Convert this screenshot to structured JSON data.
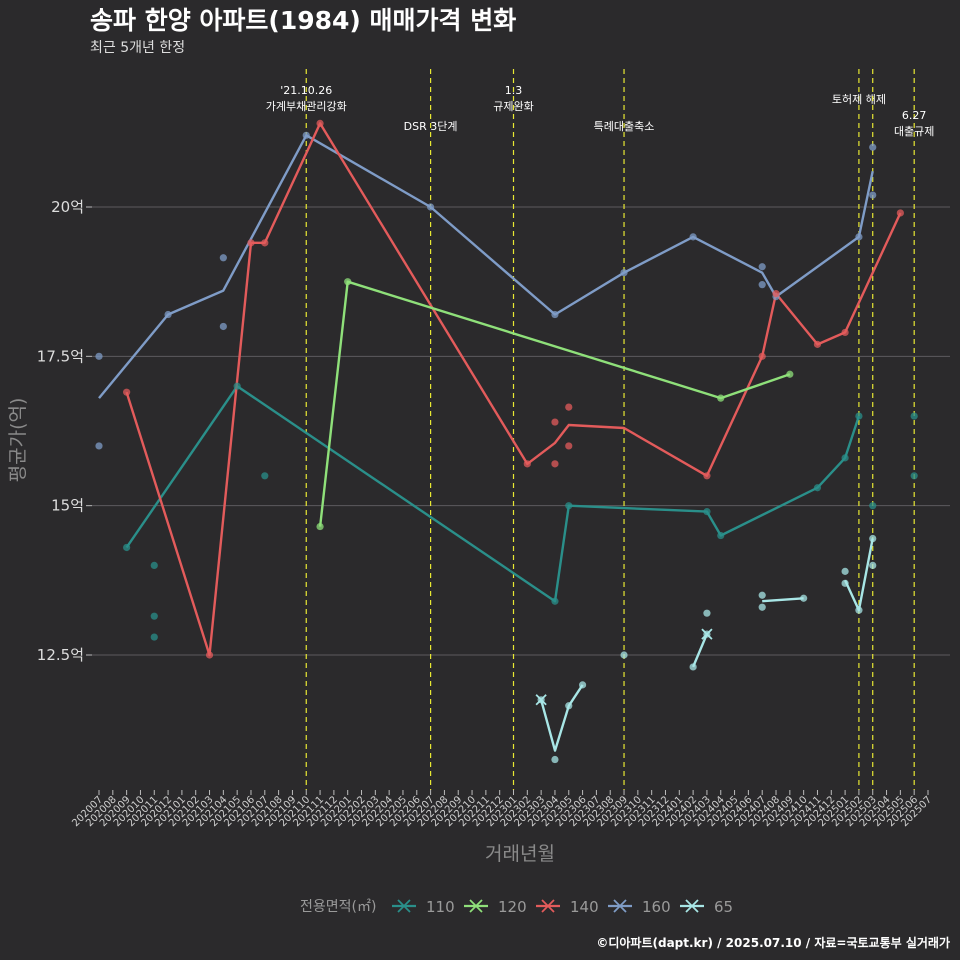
{
  "chart_data": {
    "type": "line",
    "title": "송파 한양 아파트(1984) 매매가격 변화",
    "subtitle": "최근 5개년 한정",
    "xlabel": "거래년월",
    "ylabel": "평균가(억)",
    "caption": "©디아파트(dapt.kr) / 2025.07.10 / 자료=국토교통부 실거래가",
    "legend_title": "전용면적(㎡)",
    "legend_position": "bottom",
    "ylim": [
      10.0,
      21.8
    ],
    "y_ticks": [
      {
        "value": 12.5,
        "label": "12.5억"
      },
      {
        "value": 15,
        "label": "15억"
      },
      {
        "value": 17.5,
        "label": "17.5억"
      },
      {
        "value": 20,
        "label": "20억"
      }
    ],
    "x_categories": [
      "202007",
      "202008",
      "202009",
      "202010",
      "202011",
      "202012",
      "202101",
      "202102",
      "202103",
      "202104",
      "202105",
      "202106",
      "202107",
      "202108",
      "202109",
      "202110",
      "202111",
      "202112",
      "202201",
      "202202",
      "202203",
      "202204",
      "202205",
      "202206",
      "202207",
      "202208",
      "202209",
      "202210",
      "202211",
      "202212",
      "202301",
      "202302",
      "202303",
      "202304",
      "202305",
      "202306",
      "202307",
      "202308",
      "202309",
      "202310",
      "202311",
      "202312",
      "202401",
      "202402",
      "202403",
      "202404",
      "202405",
      "202406",
      "202407",
      "202408",
      "202409",
      "202410",
      "202411",
      "202412",
      "202501",
      "202502",
      "202503",
      "202504",
      "202505",
      "202506",
      "202507"
    ],
    "events": [
      {
        "x": "202110",
        "label": "'21.10.26\n가계부채관리강화"
      },
      {
        "x": "202207",
        "label": "DSR 3단계"
      },
      {
        "x": "202301",
        "label": "1.3\n규제완화"
      },
      {
        "x": "202309",
        "label": "특례대출축소"
      },
      {
        "x": "202502",
        "label": "토허제 해제"
      },
      {
        "x": "202503",
        "label": ""
      },
      {
        "x": "202506",
        "label": "6.27\n대출규제"
      }
    ],
    "colors": {
      "110": "#2a8f8a",
      "120": "#8fe07a",
      "140": "#e35b5b",
      "160": "#7f9cc7",
      "65": "#a8e6e6"
    },
    "series": [
      {
        "name": "110",
        "line": [
          [
            "202009",
            14.3
          ],
          [
            "202105",
            17.0
          ],
          [
            "202304",
            13.4
          ],
          [
            "202305",
            15.0
          ],
          [
            "202403",
            14.9
          ],
          [
            "202404",
            14.5
          ],
          [
            "202411",
            15.3
          ],
          [
            "202501",
            15.8
          ],
          [
            "202502",
            16.5
          ]
        ],
        "points": [
          [
            "202009",
            14.3
          ],
          [
            "202011",
            14.0
          ],
          [
            "202011",
            13.15
          ],
          [
            "202011",
            12.8
          ],
          [
            "202105",
            17.0
          ],
          [
            "202107",
            15.5
          ],
          [
            "202304",
            13.4
          ],
          [
            "202305",
            15.0
          ],
          [
            "202403",
            14.9
          ],
          [
            "202404",
            14.5
          ],
          [
            "202411",
            15.3
          ],
          [
            "202501",
            15.8
          ],
          [
            "202502",
            16.5
          ],
          [
            "202503",
            15.0
          ],
          [
            "202506",
            16.5
          ],
          [
            "202506",
            15.5
          ]
        ]
      },
      {
        "name": "120",
        "line": [
          [
            "202111",
            14.65
          ],
          [
            "202201",
            18.75
          ],
          [
            "202404",
            16.8
          ],
          [
            "202409",
            17.2
          ]
        ],
        "points": [
          [
            "202111",
            14.65
          ],
          [
            "202201",
            18.75
          ],
          [
            "202404",
            16.8
          ],
          [
            "202409",
            17.2
          ]
        ]
      },
      {
        "name": "140",
        "line": [
          [
            "202009",
            16.9
          ],
          [
            "202103",
            12.5
          ],
          [
            "202106",
            19.4
          ],
          [
            "202107",
            19.4
          ],
          [
            "202111",
            21.4
          ],
          [
            "202302",
            15.7
          ],
          [
            "202304",
            16.05
          ],
          [
            "202305",
            16.35
          ],
          [
            "202309",
            16.3
          ],
          [
            "202403",
            15.5
          ],
          [
            "202407",
            17.5
          ],
          [
            "202408",
            18.55
          ],
          [
            "202411",
            17.7
          ],
          [
            "202501",
            17.9
          ],
          [
            "202505",
            19.9
          ]
        ],
        "points": [
          [
            "202009",
            16.9
          ],
          [
            "202103",
            12.5
          ],
          [
            "202106",
            19.4
          ],
          [
            "202107",
            19.4
          ],
          [
            "202111",
            21.4
          ],
          [
            "202302",
            15.7
          ],
          [
            "202304",
            16.4
          ],
          [
            "202304",
            15.7
          ],
          [
            "202305",
            16.65
          ],
          [
            "202305",
            16.0
          ],
          [
            "202403",
            15.5
          ],
          [
            "202407",
            17.5
          ],
          [
            "202408",
            18.55
          ],
          [
            "202411",
            17.7
          ],
          [
            "202501",
            17.9
          ],
          [
            "202505",
            19.9
          ]
        ]
      },
      {
        "name": "160",
        "line": [
          [
            "202007",
            16.8
          ],
          [
            "202012",
            18.2
          ],
          [
            "202104",
            18.6
          ],
          [
            "202110",
            21.2
          ],
          [
            "202207",
            20.0
          ],
          [
            "202304",
            18.2
          ],
          [
            "202309",
            18.9
          ],
          [
            "202402",
            19.5
          ],
          [
            "202407",
            18.9
          ],
          [
            "202408",
            18.5
          ],
          [
            "202502",
            19.5
          ],
          [
            "202503",
            20.6
          ]
        ],
        "points": [
          [
            "202007",
            17.5
          ],
          [
            "202007",
            16.0
          ],
          [
            "202012",
            18.2
          ],
          [
            "202104",
            19.15
          ],
          [
            "202104",
            18.0
          ],
          [
            "202110",
            21.2
          ],
          [
            "202207",
            20.0
          ],
          [
            "202304",
            18.2
          ],
          [
            "202309",
            18.9
          ],
          [
            "202402",
            19.5
          ],
          [
            "202407",
            19.0
          ],
          [
            "202407",
            18.7
          ],
          [
            "202408",
            18.5
          ],
          [
            "202502",
            19.5
          ],
          [
            "202503",
            21.0
          ],
          [
            "202503",
            20.2
          ]
        ]
      },
      {
        "name": "65",
        "segments": [
          [
            [
              "202303",
              11.75
            ],
            [
              "202304",
              10.9
            ],
            [
              "202305",
              11.65
            ],
            [
              "202306",
              12.0
            ]
          ],
          [
            [
              "202402",
              12.3
            ],
            [
              "202403",
              12.85
            ]
          ],
          [
            [
              "202407",
              13.4
            ],
            [
              "202410",
              13.45
            ]
          ],
          [
            [
              "202501",
              13.75
            ],
            [
              "202502",
              13.25
            ],
            [
              "202503",
              14.45
            ]
          ]
        ],
        "points": [
          [
            "202303",
            11.75
          ],
          [
            "202304",
            10.75
          ],
          [
            "202305",
            11.65
          ],
          [
            "202306",
            12.0
          ],
          [
            "202309",
            12.5
          ],
          [
            "202402",
            12.3
          ],
          [
            "202403",
            12.85
          ],
          [
            "202403",
            13.2
          ],
          [
            "202407",
            13.5
          ],
          [
            "202407",
            13.3
          ],
          [
            "202410",
            13.45
          ],
          [
            "202501",
            13.9
          ],
          [
            "202501",
            13.7
          ],
          [
            "202502",
            13.25
          ],
          [
            "202503",
            14.45
          ],
          [
            "202503",
            14.0
          ]
        ]
      }
    ]
  }
}
